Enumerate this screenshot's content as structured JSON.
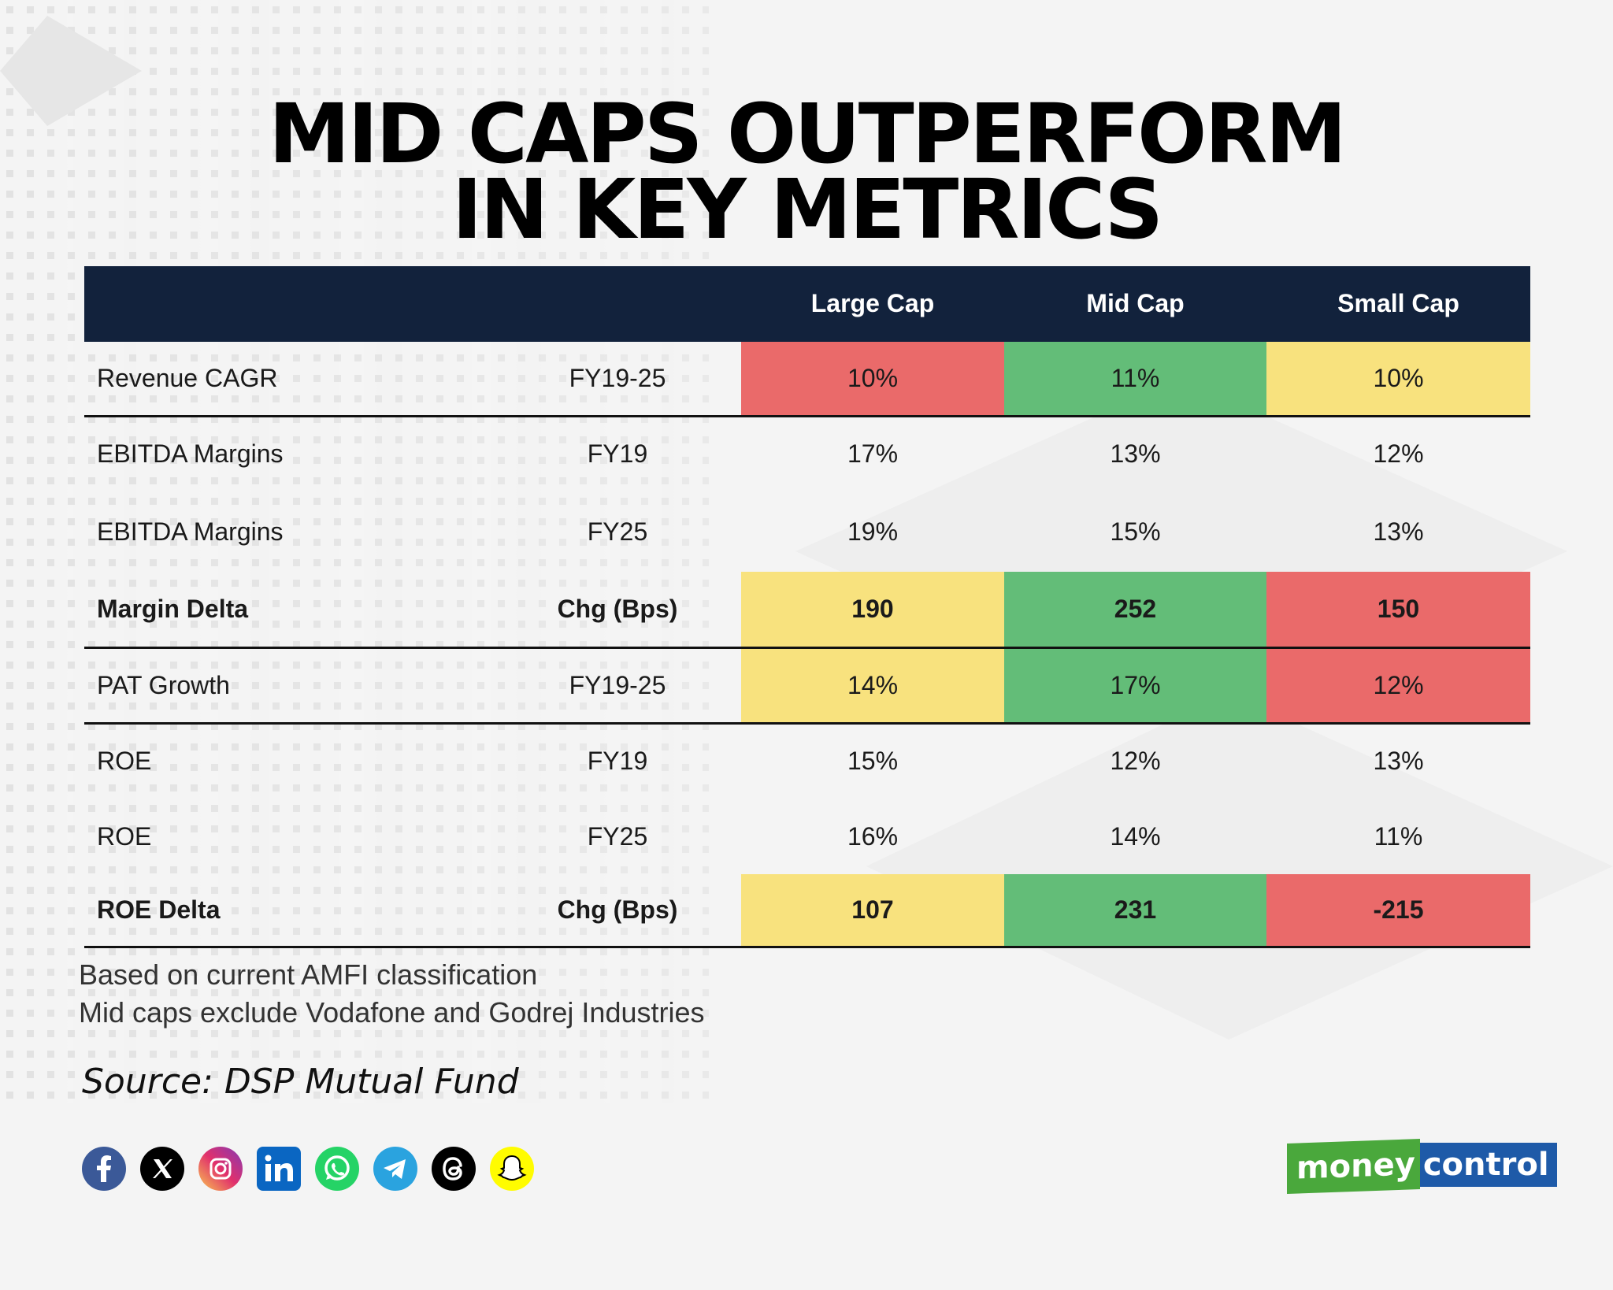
{
  "title": {
    "line1": "MID CAPS OUTPERFORM",
    "line2": "IN KEY METRICS"
  },
  "colors": {
    "header_bg": "#12223c",
    "red": "#ea6a6a",
    "green": "#63bd78",
    "yellow": "#f8e27e",
    "brand_green": "#4aa83c",
    "brand_blue": "#1e5aa8"
  },
  "chart_data": {
    "type": "table",
    "columns": [
      "",
      "",
      "Large Cap",
      "Mid Cap",
      "Small Cap"
    ],
    "rows": [
      {
        "metric": "Revenue CAGR",
        "period": "FY19-25",
        "values": [
          "10%",
          "11%",
          "10%"
        ],
        "fills": [
          "red",
          "green",
          "yellow"
        ],
        "bold": false
      },
      {
        "metric": "EBITDA Margins",
        "period": "FY19",
        "values": [
          "17%",
          "13%",
          "12%"
        ],
        "fills": [
          "",
          "",
          ""
        ],
        "bold": false
      },
      {
        "metric": "EBITDA Margins",
        "period": "FY25",
        "values": [
          "19%",
          "15%",
          "13%"
        ],
        "fills": [
          "",
          "",
          ""
        ],
        "bold": false
      },
      {
        "metric": "Margin Delta",
        "period": "Chg (Bps)",
        "values": [
          "190",
          "252",
          "150"
        ],
        "fills": [
          "yellow",
          "green",
          "red"
        ],
        "bold": true
      },
      {
        "metric": "PAT Growth",
        "period": "FY19-25",
        "values": [
          "14%",
          "17%",
          "12%"
        ],
        "fills": [
          "yellow",
          "green",
          "red"
        ],
        "bold": false
      },
      {
        "metric": "ROE",
        "period": "FY19",
        "values": [
          "15%",
          "12%",
          "13%"
        ],
        "fills": [
          "",
          "",
          ""
        ],
        "bold": false
      },
      {
        "metric": "ROE",
        "period": "FY25",
        "values": [
          "16%",
          "14%",
          "11%"
        ],
        "fills": [
          "",
          "",
          ""
        ],
        "bold": false
      },
      {
        "metric": "ROE Delta",
        "period": "Chg (Bps)",
        "values": [
          "107",
          "231",
          "-215"
        ],
        "fills": [
          "yellow",
          "green",
          "red"
        ],
        "bold": true
      }
    ]
  },
  "notes": [
    "Based on current AMFI classification",
    "Mid caps exclude Vodafone and Godrej Industries"
  ],
  "source": "Source: DSP Mutual Fund",
  "social_icons": [
    "facebook-icon",
    "x-icon",
    "instagram-icon",
    "linkedin-icon",
    "whatsapp-icon",
    "telegram-icon",
    "threads-icon",
    "snapchat-icon"
  ],
  "brand": {
    "part1": "money",
    "part2": "control"
  }
}
